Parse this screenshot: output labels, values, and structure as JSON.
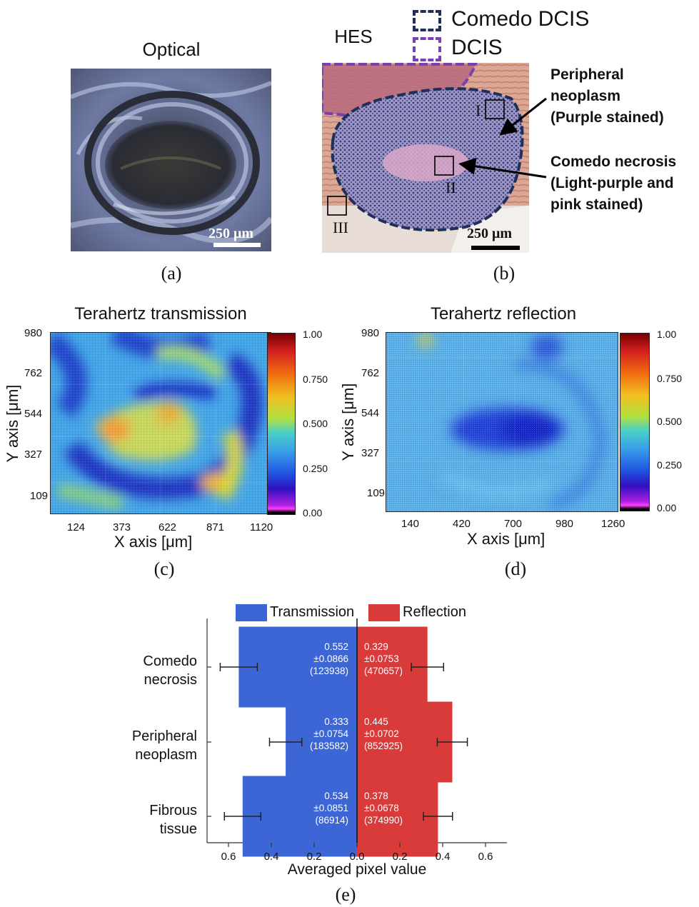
{
  "panel_a": {
    "title": "Optical",
    "scalebar": "250 μm",
    "caption": "(a)"
  },
  "panel_b": {
    "title": "HES",
    "legend": [
      {
        "label": "Comedo DCIS",
        "color": "#1f2f5a"
      },
      {
        "label": "DCIS",
        "color": "#7a3fb3"
      }
    ],
    "annotations": [
      {
        "label": "Peripheral neoplasm (Purple stained)",
        "lines": [
          "Peripheral",
          "neoplasm",
          "(Purple stained)"
        ]
      },
      {
        "label": "Comedo necrosis (Light-purple and pink stained)",
        "lines": [
          "Comedo necrosis",
          "(Light-purple and",
          "pink stained)"
        ]
      }
    ],
    "roi_labels": [
      "I",
      "II",
      "III"
    ],
    "scalebar": "250 μm",
    "caption": "(b)"
  },
  "panel_c": {
    "title": "Terahertz transmission",
    "x_ticks": [
      "124",
      "373",
      "622",
      "871",
      "1120"
    ],
    "y_ticks": [
      "980",
      "762",
      "544",
      "327",
      "109"
    ],
    "xlabel": "X axis [μm]",
    "ylabel": "Y axis [μm]",
    "colorbar_ticks": [
      "1.00",
      "0.750",
      "0.500",
      "0.250",
      "0.00"
    ],
    "caption": "(c)"
  },
  "panel_d": {
    "title": "Terahertz reflection",
    "x_ticks": [
      "140",
      "420",
      "700",
      "980",
      "1260"
    ],
    "y_ticks": [
      "980",
      "762",
      "544",
      "327",
      "109"
    ],
    "xlabel": "X axis [μm]",
    "ylabel": "Y axis [μm]",
    "colorbar_ticks": [
      "1.00",
      "0.750",
      "0.500",
      "0.250",
      "0.00"
    ],
    "caption": "(d)"
  },
  "chart_data": {
    "type": "bar",
    "orientation": "horizontal-butterfly",
    "categories": [
      "Comedo necrosis",
      "Peripheral neoplasm",
      "Fibrous tissue"
    ],
    "category_lines": [
      [
        "Comedo",
        "necrosis"
      ],
      [
        "Peripheral",
        "neoplasm"
      ],
      [
        "Fibrous",
        "tissue"
      ]
    ],
    "series": [
      {
        "name": "Transmission",
        "color": "#3c66d6",
        "side": "left",
        "values": [
          0.552,
          0.333,
          0.534
        ],
        "sd": [
          0.0866,
          0.0754,
          0.0851
        ],
        "n": [
          123938,
          183582,
          86914
        ],
        "labels": [
          [
            "0.552",
            "±0.0866",
            "(123938)"
          ],
          [
            "0.333",
            "±0.0754",
            "(183582)"
          ],
          [
            "0.534",
            "±0.0851",
            "(86914)"
          ]
        ]
      },
      {
        "name": "Reflection",
        "color": "#d93a3a",
        "side": "right",
        "values": [
          0.329,
          0.445,
          0.378
        ],
        "sd": [
          0.0753,
          0.0702,
          0.0678
        ],
        "n": [
          470657,
          852925,
          374990
        ],
        "labels": [
          [
            "0.329",
            "±0.0753",
            "(470657)"
          ],
          [
            "0.445",
            "±0.0702",
            "(852925)"
          ],
          [
            "0.378",
            "±0.0678",
            "(374990)"
          ]
        ]
      }
    ],
    "xlabel": "Averaged pixel value",
    "xlim": [
      -0.7,
      0.7
    ],
    "x_tick_values": [
      -0.6,
      -0.4,
      -0.2,
      0,
      0.2,
      0.4,
      0.6
    ],
    "x_tick_labels": [
      "0.6",
      "0.4",
      "0.2",
      "0.0",
      "0.2",
      "0.4",
      "0.6"
    ],
    "legend_position": "top",
    "caption": "(e)"
  }
}
